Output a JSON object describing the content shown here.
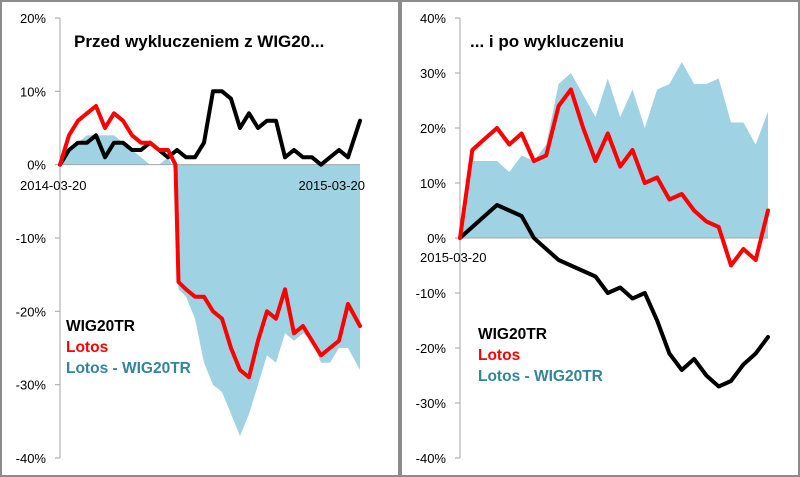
{
  "colors": {
    "wig": "#000000",
    "lotos": "#ff0000",
    "diff": "#9fd3e3",
    "axis": "#a6a6a6",
    "diff_text": "#31859c"
  },
  "chart_data": [
    {
      "type": "line",
      "title": "Przed wykluczeniem z WIG20...",
      "x_start": "2014-03-20",
      "x_end": "2015-03-20",
      "ylim": [
        -40,
        20
      ],
      "yticks": [
        "20%",
        "10%",
        "0%",
        "-10%",
        "-20%",
        "-30%",
        "-40%"
      ],
      "legend": [
        "WIG20TR",
        "Lotos",
        "Lotos - WIG20TR"
      ],
      "series": [
        {
          "name": "WIG20TR",
          "kind": "line",
          "color": "#000000",
          "t": [
            0,
            0.03,
            0.06,
            0.09,
            0.12,
            0.15,
            0.18,
            0.21,
            0.24,
            0.27,
            0.3,
            0.33,
            0.36,
            0.39,
            0.42,
            0.45,
            0.48,
            0.51,
            0.54,
            0.57,
            0.6,
            0.63,
            0.66,
            0.69,
            0.72,
            0.75,
            0.78,
            0.81,
            0.84,
            0.87,
            0.9,
            0.93,
            0.96,
            1.0
          ],
          "values": [
            0,
            2,
            3,
            3,
            4,
            1,
            3,
            3,
            2,
            2,
            3,
            2,
            1,
            2,
            1,
            1,
            3,
            10,
            10,
            9,
            5,
            7,
            5,
            6,
            6,
            1,
            2,
            1,
            1,
            0,
            1,
            2,
            1,
            6
          ]
        },
        {
          "name": "Lotos",
          "kind": "line",
          "color": "#ff0000",
          "t": [
            0,
            0.03,
            0.06,
            0.09,
            0.12,
            0.15,
            0.18,
            0.21,
            0.24,
            0.27,
            0.3,
            0.33,
            0.36,
            0.385,
            0.395,
            0.42,
            0.45,
            0.48,
            0.51,
            0.54,
            0.57,
            0.6,
            0.63,
            0.66,
            0.69,
            0.72,
            0.75,
            0.78,
            0.81,
            0.84,
            0.87,
            0.9,
            0.93,
            0.96,
            1.0
          ],
          "values": [
            0,
            4,
            6,
            7,
            8,
            5,
            7,
            6,
            4,
            3,
            3,
            2,
            2,
            0,
            -16,
            -17,
            -18,
            -18,
            -20,
            -21,
            -25,
            -28,
            -29,
            -24,
            -20,
            -21,
            -17,
            -23,
            -22,
            -24,
            -26,
            -25,
            -24,
            -19,
            -22
          ]
        },
        {
          "name": "Lotos - WIG20TR",
          "kind": "area",
          "color": "#9fd3e3",
          "t": [
            0,
            0.03,
            0.06,
            0.09,
            0.12,
            0.15,
            0.18,
            0.21,
            0.24,
            0.27,
            0.3,
            0.33,
            0.36,
            0.385,
            0.395,
            0.42,
            0.45,
            0.48,
            0.51,
            0.54,
            0.57,
            0.6,
            0.63,
            0.66,
            0.69,
            0.72,
            0.75,
            0.78,
            0.81,
            0.84,
            0.87,
            0.9,
            0.93,
            0.96,
            1.0
          ],
          "values": [
            0,
            2,
            3,
            4,
            4,
            4,
            4,
            3,
            2,
            1,
            0,
            0,
            1,
            -1,
            -17,
            -18,
            -21,
            -27,
            -30,
            -31,
            -34,
            -37,
            -34,
            -30,
            -26,
            -27,
            -23,
            -24,
            -23,
            -24,
            -27,
            -27,
            -25,
            -25,
            -28
          ]
        }
      ]
    },
    {
      "type": "line",
      "title": "... i po wykluczeniu",
      "x_start": "2015-03-20",
      "ylim": [
        -40,
        40
      ],
      "yticks": [
        "40%",
        "30%",
        "20%",
        "10%",
        "0%",
        "-10%",
        "-20%",
        "-30%",
        "-40%"
      ],
      "legend": [
        "WIG20TR",
        "Lotos",
        "Lotos - WIG20TR"
      ],
      "series": [
        {
          "name": "WIG20TR",
          "kind": "line",
          "color": "#000000",
          "t": [
            0,
            0.04,
            0.08,
            0.12,
            0.16,
            0.2,
            0.24,
            0.28,
            0.32,
            0.36,
            0.4,
            0.44,
            0.48,
            0.52,
            0.56,
            0.6,
            0.64,
            0.68,
            0.72,
            0.76,
            0.8,
            0.84,
            0.88,
            0.92,
            0.96,
            1.0
          ],
          "values": [
            0,
            2,
            4,
            6,
            5,
            4,
            0,
            -2,
            -4,
            -5,
            -6,
            -7,
            -10,
            -9,
            -11,
            -10,
            -15,
            -21,
            -24,
            -22,
            -25,
            -27,
            -26,
            -23,
            -21,
            -18
          ]
        },
        {
          "name": "Lotos",
          "kind": "line",
          "color": "#ff0000",
          "t": [
            0,
            0.04,
            0.08,
            0.12,
            0.16,
            0.2,
            0.24,
            0.28,
            0.32,
            0.36,
            0.4,
            0.44,
            0.48,
            0.52,
            0.56,
            0.6,
            0.64,
            0.68,
            0.72,
            0.76,
            0.8,
            0.84,
            0.88,
            0.92,
            0.96,
            1.0
          ],
          "values": [
            0,
            16,
            18,
            20,
            17,
            19,
            14,
            15,
            24,
            27,
            20,
            14,
            19,
            13,
            16,
            10,
            11,
            7,
            8,
            5,
            3,
            2,
            -5,
            -2,
            -4,
            5
          ]
        },
        {
          "name": "Lotos - WIG20TR",
          "kind": "area",
          "color": "#9fd3e3",
          "t": [
            0,
            0.04,
            0.08,
            0.12,
            0.16,
            0.2,
            0.24,
            0.28,
            0.32,
            0.36,
            0.4,
            0.44,
            0.48,
            0.52,
            0.56,
            0.6,
            0.64,
            0.68,
            0.72,
            0.76,
            0.8,
            0.84,
            0.88,
            0.92,
            0.96,
            1.0
          ],
          "values": [
            0,
            14,
            14,
            14,
            12,
            15,
            14,
            17,
            28,
            30,
            26,
            22,
            29,
            22,
            27,
            20,
            27,
            28,
            32,
            28,
            28,
            29,
            21,
            21,
            17,
            23
          ]
        }
      ]
    }
  ]
}
